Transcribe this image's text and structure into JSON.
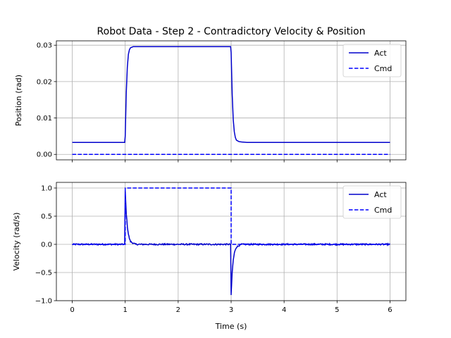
{
  "chart_data": {
    "title": "Robot Data - Step 2 - Contradictory Velocity & Position",
    "colors": {
      "act": "#0000cc",
      "cmd": "#0000ff",
      "grid": "#b0b0b0"
    },
    "xlabel": "Time (s)",
    "xlim": [
      -0.3,
      6.3
    ],
    "xticks": [
      0,
      1,
      2,
      3,
      4,
      5,
      6
    ],
    "xtick_labels": [
      "0",
      "1",
      "2",
      "3",
      "4",
      "5",
      "6"
    ],
    "grid": true,
    "charts": [
      {
        "type": "line",
        "ylabel": "Position (rad)",
        "ylim": [
          -0.0015,
          0.0312
        ],
        "yticks": [
          0.0,
          0.01,
          0.02,
          0.03
        ],
        "ytick_labels": [
          "0.00",
          "0.01",
          "0.02",
          "0.03"
        ],
        "legend": "top-right",
        "series": [
          {
            "name": "Act",
            "style": "solid",
            "x": [
              0,
              0.99,
              1.0,
              1.02,
              1.04,
              1.06,
              1.08,
              1.1,
              1.15,
              1.2,
              1.3,
              2.99,
              3.0,
              3.02,
              3.04,
              3.06,
              3.08,
              3.1,
              3.15,
              3.2,
              3.3,
              6.0
            ],
            "y": [
              0.0033,
              0.0033,
              0.005,
              0.017,
              0.024,
              0.0275,
              0.0288,
              0.0293,
              0.0296,
              0.0296,
              0.0296,
              0.0296,
              0.028,
              0.0165,
              0.0095,
              0.0062,
              0.0046,
              0.0039,
              0.0035,
              0.0034,
              0.0033,
              0.0033
            ]
          },
          {
            "name": "Cmd",
            "style": "dashed",
            "x": [
              0,
              6
            ],
            "y": [
              0.0,
              0.0
            ]
          }
        ]
      },
      {
        "type": "line",
        "ylabel": "Velocity (rad/s)",
        "ylim": [
          -1.0,
          1.1
        ],
        "yticks": [
          -1.0,
          -0.5,
          0.0,
          0.5,
          1.0
        ],
        "ytick_labels": [
          "−1.0",
          "−0.5",
          "0.0",
          "0.5",
          "1.0"
        ],
        "legend": "top-right",
        "series": [
          {
            "name": "Act",
            "style": "solid",
            "x": [
              0,
              0.99,
              1.0,
              1.02,
              1.04,
              1.06,
              1.08,
              1.1,
              1.15,
              1.2,
              2.99,
              3.0,
              3.02,
              3.04,
              3.06,
              3.08,
              3.1,
              3.15,
              3.2,
              6.0
            ],
            "y": [
              0.0,
              0.0,
              0.95,
              0.55,
              0.32,
              0.18,
              0.1,
              0.05,
              0.02,
              0.0,
              0.0,
              -0.9,
              -0.5,
              -0.28,
              -0.16,
              -0.09,
              -0.05,
              -0.02,
              0.0,
              0.0
            ],
            "noise": 0.012
          },
          {
            "name": "Cmd",
            "style": "dashed",
            "x": [
              0,
              1.0,
              1.0,
              3.0,
              3.0,
              6.0
            ],
            "y": [
              0.0,
              0.0,
              1.0,
              1.0,
              0.0,
              0.0
            ]
          }
        ]
      }
    ]
  }
}
